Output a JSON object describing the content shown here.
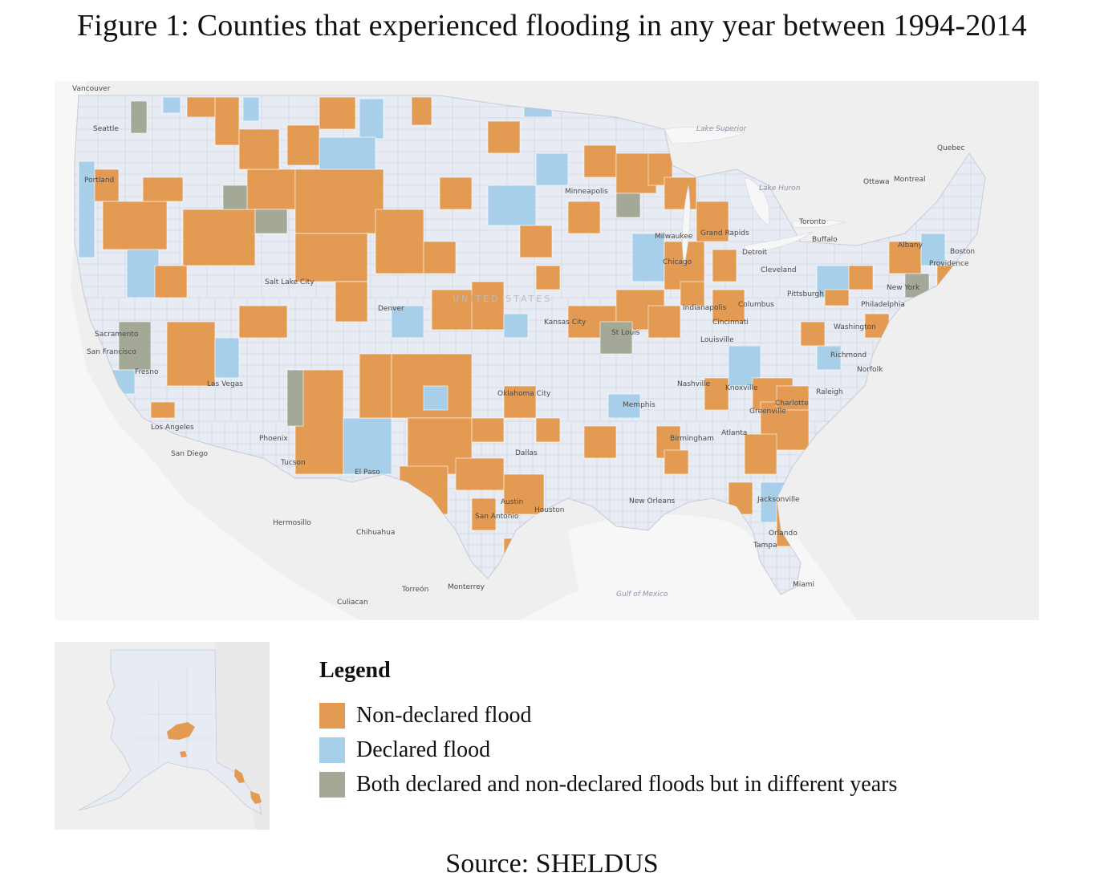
{
  "figure": {
    "title": "Figure 1: Counties that experienced flooding in any year between 1994-2014",
    "source": "Source:  SHELDUS"
  },
  "colors": {
    "non_declared": "#e39a52",
    "declared": "#a8cfe9",
    "both": "#a3a897",
    "land_us": "#e7ebf3",
    "land_other": "#efefef",
    "water": "#f7f7f7",
    "border": "#c6cbd6"
  },
  "legend": {
    "title": "Legend",
    "items": [
      {
        "label": "Non-declared flood",
        "color": "#e39a52"
      },
      {
        "label": "Declared flood",
        "color": "#a8cfe9"
      },
      {
        "label": "Both declared and non-declared floods but in different years",
        "color": "#a3a897"
      }
    ]
  },
  "map_labels": {
    "country": "UNITED STATES",
    "cities": [
      "Vancouver",
      "Seattle",
      "Portland",
      "Sacramento",
      "San Francisco",
      "Fresno",
      "Los Angeles",
      "San Diego",
      "Las Vegas",
      "Phoenix",
      "Tucson",
      "Salt Lake City",
      "Denver",
      "El Paso",
      "Hermosillo",
      "Chihuahua",
      "Culiacan",
      "Torreón",
      "Monterrey",
      "Austin",
      "San Antonio",
      "Houston",
      "Dallas",
      "Oklahoma City",
      "Kansas City",
      "Minneapolis",
      "Milwaukee",
      "Chicago",
      "St Louis",
      "Memphis",
      "Nashville",
      "Indianapolis",
      "Cincinnati",
      "Louisville",
      "Columbus",
      "Detroit",
      "Grand Rapids",
      "Cleveland",
      "Pittsburgh",
      "Toronto",
      "Buffalo",
      "Ottawa",
      "Montreal",
      "Quebec",
      "Albany",
      "Boston",
      "Providence",
      "New York",
      "Philadelphia",
      "Washington",
      "Richmond",
      "Norfolk",
      "Raleigh",
      "Charlotte",
      "Greenville",
      "Atlanta",
      "Birmingham",
      "Knoxville",
      "New Orleans",
      "Jacksonville",
      "Orlando",
      "Tampa",
      "Miami"
    ],
    "water": [
      "Lake Superior",
      "Lake Huron",
      "Gulf of Mexico"
    ]
  }
}
